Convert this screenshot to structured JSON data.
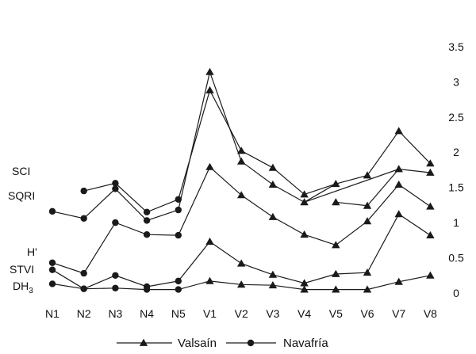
{
  "chart_data": {
    "type": "line",
    "categories": [
      "N1",
      "N2",
      "N3",
      "N4",
      "N5",
      "V1",
      "V2",
      "V3",
      "V4",
      "V5",
      "V6",
      "V7",
      "V8"
    ],
    "y_axis": {
      "position": "right",
      "ylim": [
        0,
        3.5
      ],
      "ticks": [
        "0",
        "0.5",
        "1",
        "1.5",
        "2",
        "2.5",
        "3",
        "3.5"
      ]
    },
    "grid": false,
    "legend": {
      "position": "bottom",
      "entries": [
        {
          "name": "Valsaín",
          "marker": "triangle"
        },
        {
          "name": "Navafría",
          "marker": "circle"
        }
      ]
    },
    "index_labels": [
      {
        "key": "sci",
        "text": "SCI"
      },
      {
        "key": "sqri",
        "text": "SQRI"
      },
      {
        "key": "h",
        "text": "H'"
      },
      {
        "key": "stvi",
        "text": "STVI"
      },
      {
        "key": "dh3",
        "text": "DH3"
      }
    ],
    "series": [
      {
        "index": "sci",
        "site": "Navafría",
        "marker": "circle",
        "values": [
          null,
          1.45,
          1.56,
          1.15,
          1.33,
          null,
          null,
          null,
          null,
          null,
          null,
          null,
          null
        ]
      },
      {
        "index": "sci",
        "site": "Valsaín",
        "marker": "triangle",
        "values": [
          null,
          null,
          null,
          null,
          null,
          2.88,
          2.02,
          1.78,
          1.4,
          1.55,
          1.67,
          2.3,
          1.84
        ]
      },
      {
        "index": "sqri",
        "site": "Navafría",
        "marker": "circle",
        "values": [
          1.16,
          1.06,
          1.48,
          1.03,
          1.18,
          null,
          null,
          null,
          null,
          null,
          null,
          null,
          null
        ]
      },
      {
        "index": "sqri",
        "site": "Valsaín",
        "marker": "triangle",
        "values": [
          null,
          null,
          null,
          null,
          null,
          3.14,
          1.87,
          1.54,
          1.29,
          null,
          null,
          1.76,
          1.71
        ]
      },
      {
        "index": "h",
        "site": "Navafría",
        "marker": "circle",
        "values": [
          0.43,
          0.28,
          1.0,
          0.83,
          0.82,
          null,
          null,
          null,
          null,
          null,
          null,
          null,
          null
        ]
      },
      {
        "index": "h",
        "site": "Valsaín",
        "marker": "triangle",
        "values": [
          null,
          null,
          null,
          null,
          null,
          1.79,
          1.39,
          1.08,
          0.83,
          0.68,
          1.02,
          1.54,
          1.23
        ]
      },
      {
        "index": "stvi",
        "site": "Navafría",
        "marker": "circle",
        "values": [
          0.33,
          0.06,
          0.25,
          0.09,
          0.17,
          null,
          null,
          null,
          null,
          null,
          null,
          null,
          null
        ]
      },
      {
        "index": "stvi",
        "site": "Valsaín",
        "marker": "triangle",
        "values": [
          null,
          null,
          null,
          null,
          null,
          0.73,
          0.42,
          0.26,
          0.14,
          0.27,
          0.29,
          1.12,
          0.82
        ]
      },
      {
        "index": "dh3",
        "site": "Navafría",
        "marker": "circle",
        "values": [
          0.13,
          0.06,
          0.07,
          0.05,
          0.05,
          null,
          null,
          null,
          null,
          null,
          null,
          null,
          null
        ]
      },
      {
        "index": "dh3",
        "site": "Valsaín",
        "marker": "triangle",
        "values": [
          null,
          null,
          null,
          null,
          null,
          0.17,
          0.12,
          0.11,
          0.05,
          0.05,
          0.05,
          0.16,
          0.25
        ]
      }
    ],
    "connectors": [
      {
        "index": "sci",
        "from": 4,
        "to": 5
      },
      {
        "index": "sqri",
        "from": 4,
        "to": 5
      },
      {
        "index": "h",
        "from": 4,
        "to": 5
      },
      {
        "index": "stvi",
        "from": 4,
        "to": 5
      },
      {
        "index": "dh3",
        "from": 4,
        "to": 5
      },
      {
        "index": "sqri",
        "from": 8,
        "to": 11,
        "via": "h-v5-v6"
      }
    ]
  }
}
